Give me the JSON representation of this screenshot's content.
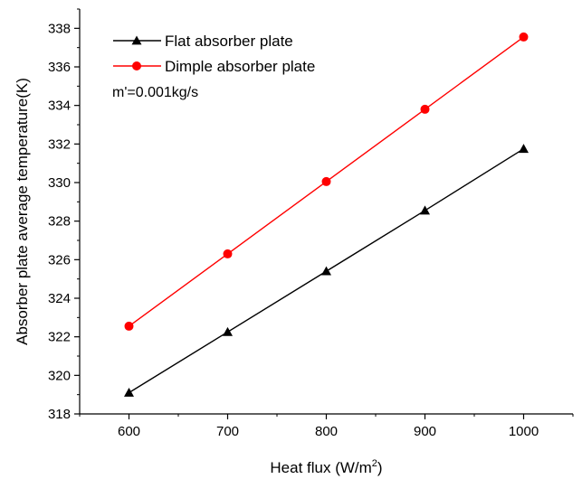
{
  "chart_data": {
    "type": "line",
    "xlabel": "Heat flux (W/m",
    "xlabel_superscript": "2",
    "xlabel_suffix": ")",
    "ylabel": "Absorber plate average temperature(K)",
    "xlim": [
      550,
      1050
    ],
    "ylim": [
      318,
      339
    ],
    "x_ticks": [
      600,
      700,
      800,
      900,
      1000
    ],
    "y_ticks": [
      318,
      320,
      322,
      324,
      326,
      328,
      330,
      332,
      334,
      336,
      338
    ],
    "x_tick_labels": [
      "600",
      "700",
      "800",
      "900",
      "1000"
    ],
    "y_tick_labels": [
      "318",
      "320",
      "322",
      "324",
      "326",
      "328",
      "330",
      "332",
      "334",
      "336",
      "338"
    ],
    "x": [
      600,
      700,
      800,
      900,
      1000
    ],
    "series": [
      {
        "name": "Flat absorber plate",
        "values": [
          319.1,
          322.25,
          325.4,
          328.55,
          331.75
        ],
        "color": "#000000",
        "marker": "triangle"
      },
      {
        "name": "Dimple absorber plate",
        "values": [
          322.55,
          326.3,
          330.05,
          333.8,
          337.55
        ],
        "color": "#ff0000",
        "marker": "circle"
      }
    ],
    "annotation": "m'=0.001kg/s",
    "legend_position": "top-left",
    "grid": false
  }
}
